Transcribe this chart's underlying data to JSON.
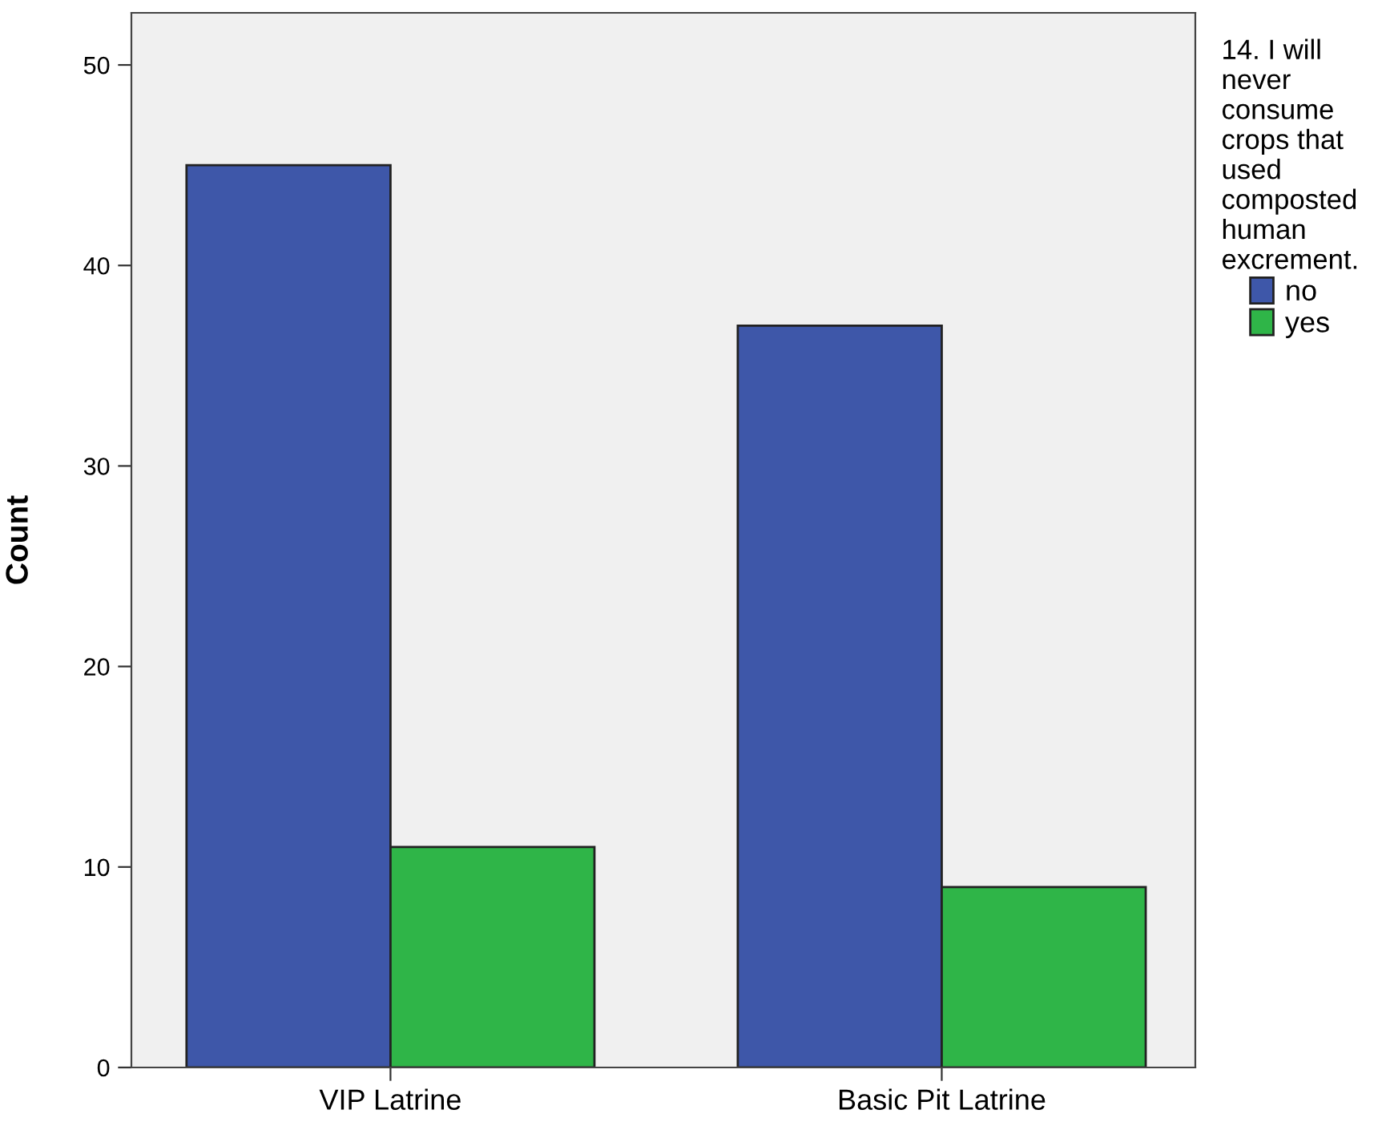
{
  "chart_data": {
    "type": "bar",
    "ylabel": "Count",
    "legend_title": "14. I will never consume crops that used composted human excrement.",
    "categories": [
      "VIP Latrine",
      "Basic Pit Latrine"
    ],
    "series": [
      {
        "name": "no",
        "color": "#3e57a9",
        "values": [
          45,
          37
        ]
      },
      {
        "name": "yes",
        "color": "#2fb548",
        "values": [
          11,
          9
        ]
      }
    ],
    "ylim": [
      0,
      52.6
    ],
    "yticks": [
      0,
      10,
      20,
      30,
      40,
      50
    ],
    "grid": false,
    "legend": "right"
  }
}
